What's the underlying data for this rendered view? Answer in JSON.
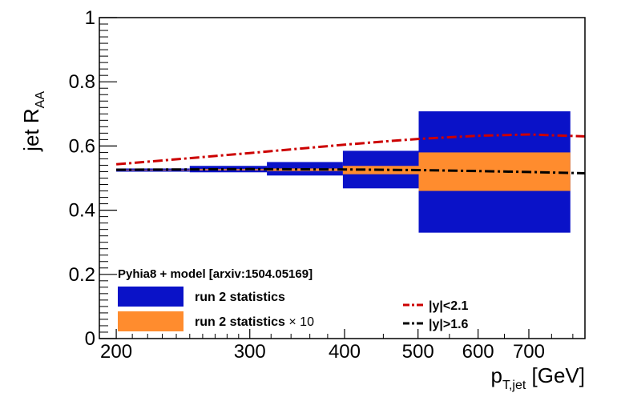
{
  "chart_data": {
    "type": "bar",
    "xscale": "log",
    "xlim": [
      190,
      830
    ],
    "ylim": [
      0,
      1
    ],
    "x_ticks": [
      200,
      300,
      400,
      500,
      600,
      700
    ],
    "y_ticks": [
      0,
      0.2,
      0.4,
      0.6,
      0.8,
      1
    ],
    "x_tick_labels": [
      "200",
      "300",
      "400",
      "500",
      "600",
      "700"
    ],
    "y_tick_labels": [
      "0",
      "0.2",
      "0.4",
      "0.6",
      "0.8",
      "1"
    ],
    "ylabel_main": "jet R",
    "ylabel_sub": "AA",
    "xlabel_main": "p",
    "xlabel_sub": "T,jet",
    "xlabel_unit": " [GeV]",
    "legend_title": "Pyhia8 + model [arxiv:1504.05169]",
    "bands": [
      {
        "name": "run 2 statistics",
        "color": "#0a12c8",
        "bins": [
          {
            "xlo": 200,
            "xhi": 250,
            "ylo": 0.52,
            "yhi": 0.53
          },
          {
            "xlo": 250,
            "xhi": 316,
            "ylo": 0.518,
            "yhi": 0.538
          },
          {
            "xlo": 316,
            "xhi": 398,
            "ylo": 0.508,
            "yhi": 0.55
          },
          {
            "xlo": 398,
            "xhi": 501,
            "ylo": 0.468,
            "yhi": 0.585
          },
          {
            "xlo": 501,
            "xhi": 794,
            "ylo": 0.33,
            "yhi": 0.708
          }
        ]
      },
      {
        "name": "run 2 statistics × 10",
        "name_main": "run 2 statistics ",
        "name_symbol": "× 10",
        "color": "#ff8c2e",
        "bins": [
          {
            "xlo": 200,
            "xhi": 250,
            "ylo": 0.524,
            "yhi": 0.526
          },
          {
            "xlo": 250,
            "xhi": 316,
            "ylo": 0.524,
            "yhi": 0.528
          },
          {
            "xlo": 316,
            "xhi": 398,
            "ylo": 0.522,
            "yhi": 0.53
          },
          {
            "xlo": 398,
            "xhi": 501,
            "ylo": 0.512,
            "yhi": 0.538
          },
          {
            "xlo": 501,
            "xhi": 794,
            "ylo": 0.46,
            "yhi": 0.58
          }
        ]
      }
    ],
    "series": [
      {
        "name": "|y|<2.1",
        "color": "#cc0000",
        "style": "dash-dot",
        "x": [
          200,
          250,
          300,
          350,
          400,
          450,
          500,
          600,
          700,
          830
        ],
        "y": [
          0.543,
          0.562,
          0.578,
          0.592,
          0.604,
          0.614,
          0.622,
          0.632,
          0.636,
          0.63
        ]
      },
      {
        "name": "|y|>1.6",
        "color": "#000000",
        "style": "dash-dot",
        "x": [
          200,
          300,
          400,
          500,
          600,
          700,
          830
        ],
        "y": [
          0.526,
          0.528,
          0.527,
          0.525,
          0.522,
          0.519,
          0.515
        ]
      }
    ],
    "grid": false,
    "legend_position": "bottom-left"
  }
}
